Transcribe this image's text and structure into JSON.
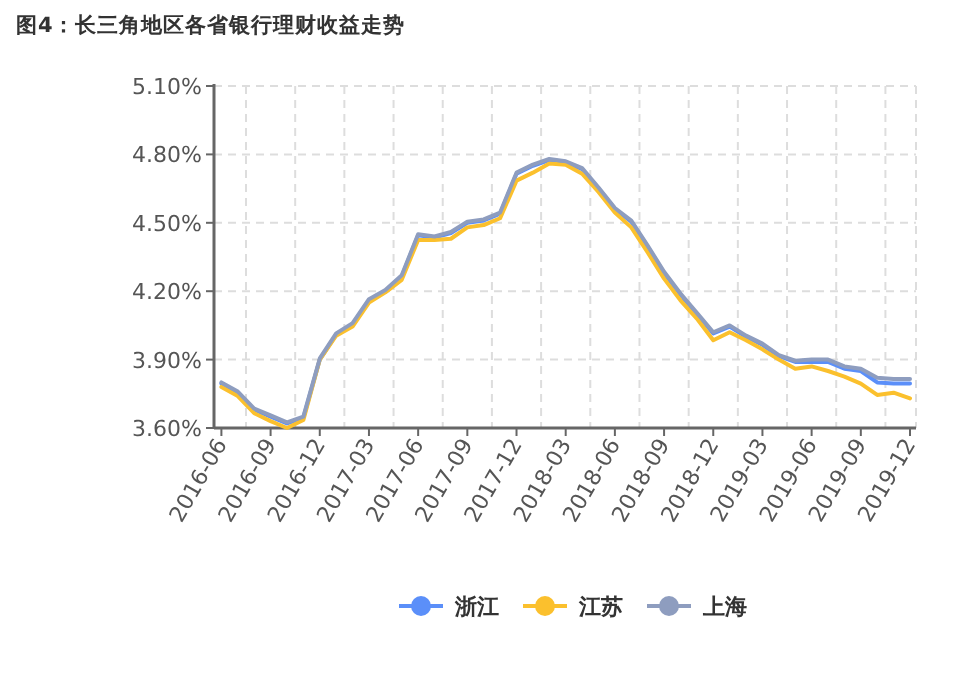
{
  "chart_data": {
    "type": "line",
    "title": "图4：长三角地区各省银行理财收益走势",
    "categories": [
      "2016-06",
      null,
      null,
      "2016-09",
      null,
      null,
      "2016-12",
      null,
      null,
      "2017-03",
      null,
      null,
      "2017-06",
      null,
      null,
      "2017-09",
      null,
      null,
      "2017-12",
      null,
      null,
      "2018-03",
      null,
      null,
      "2018-06",
      null,
      null,
      "2018-09",
      null,
      null,
      "2018-12",
      null,
      null,
      "2019-03",
      null,
      null,
      "2019-06",
      null,
      null,
      "2019-09",
      null,
      null,
      "2019-12"
    ],
    "series": [
      {
        "name": "浙江",
        "color": "#5b8ff9",
        "values": [
          3.795,
          3.755,
          3.68,
          3.65,
          3.62,
          3.645,
          3.9,
          4.01,
          4.055,
          4.16,
          4.2,
          4.265,
          4.445,
          4.435,
          4.455,
          4.5,
          4.51,
          4.54,
          4.715,
          4.75,
          4.775,
          4.765,
          4.735,
          4.65,
          4.56,
          4.505,
          4.395,
          4.28,
          4.185,
          4.1,
          4.015,
          4.045,
          4.0,
          3.965,
          3.915,
          3.89,
          3.89,
          3.89,
          3.86,
          3.85,
          3.8,
          3.795,
          3.795
        ]
      },
      {
        "name": "江苏",
        "color": "#fbc02d",
        "values": [
          3.78,
          3.74,
          3.665,
          3.63,
          3.6,
          3.635,
          3.9,
          4.005,
          4.045,
          4.15,
          4.195,
          4.25,
          4.425,
          4.425,
          4.43,
          4.48,
          4.49,
          4.52,
          4.685,
          4.72,
          4.76,
          4.755,
          4.715,
          4.635,
          4.545,
          4.48,
          4.37,
          4.255,
          4.16,
          4.08,
          3.985,
          4.02,
          3.985,
          3.945,
          3.9,
          3.86,
          3.87,
          3.85,
          3.825,
          3.795,
          3.745,
          3.755,
          3.73
        ]
      },
      {
        "name": "上海",
        "color": "#8e9dbf",
        "values": [
          3.8,
          3.76,
          3.685,
          3.655,
          3.625,
          3.65,
          3.905,
          4.015,
          4.06,
          4.165,
          4.205,
          4.27,
          4.45,
          4.44,
          4.46,
          4.505,
          4.515,
          4.545,
          4.72,
          4.755,
          4.78,
          4.77,
          4.74,
          4.655,
          4.565,
          4.51,
          4.4,
          4.285,
          4.19,
          4.105,
          4.02,
          4.05,
          4.005,
          3.97,
          3.92,
          3.895,
          3.9,
          3.9,
          3.87,
          3.86,
          3.82,
          3.815,
          3.815
        ]
      }
    ],
    "ylim": [
      3.6,
      5.1
    ],
    "yticks": [
      {
        "value": 3.6,
        "label": "3.60%"
      },
      {
        "value": 3.9,
        "label": "3.90%"
      },
      {
        "value": 4.2,
        "label": "4.20%"
      },
      {
        "value": 4.5,
        "label": "4.50%"
      },
      {
        "value": 4.8,
        "label": "4.80%"
      },
      {
        "value": 5.1,
        "label": "5.10%"
      }
    ],
    "grid": true,
    "legend": "bottom",
    "marker": "none",
    "line_style": "solid"
  }
}
